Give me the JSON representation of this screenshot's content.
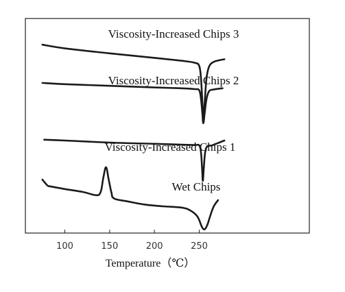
{
  "chart_data": {
    "type": "line",
    "xlabel": "Temperature（℃）",
    "ylabel": "",
    "xlim": [
      70,
      285
    ],
    "xticks": [
      100,
      150,
      200,
      250
    ],
    "grid": false,
    "legend": "none",
    "line_color": "#1a1a1a",
    "series": [
      {
        "name": "Viscosity-Increased Chips 3",
        "points": [
          [
            75,
            0.906
          ],
          [
            100,
            0.888
          ],
          [
            150,
            0.864
          ],
          [
            200,
            0.842
          ],
          [
            230,
            0.828
          ],
          [
            245,
            0.818
          ],
          [
            250,
            0.802
          ],
          [
            252,
            0.74
          ],
          [
            253.5,
            0.62
          ],
          [
            254.5,
            0.528
          ],
          [
            256,
            0.62
          ],
          [
            258,
            0.74
          ],
          [
            261,
            0.8
          ],
          [
            266,
            0.822
          ],
          [
            272,
            0.83
          ],
          [
            278,
            0.835
          ]
        ]
      },
      {
        "name": "Viscosity-Increased Chips 2",
        "points": [
          [
            75,
            0.72
          ],
          [
            100,
            0.714
          ],
          [
            150,
            0.706
          ],
          [
            200,
            0.698
          ],
          [
            230,
            0.694
          ],
          [
            245,
            0.69
          ],
          [
            250,
            0.684
          ],
          [
            252,
            0.64
          ],
          [
            253.5,
            0.57
          ],
          [
            254.5,
            0.524
          ],
          [
            256,
            0.57
          ],
          [
            258,
            0.64
          ],
          [
            261,
            0.68
          ],
          [
            266,
            0.688
          ],
          [
            272,
            0.692
          ],
          [
            276,
            0.694
          ]
        ]
      },
      {
        "name": "Viscosity-Increased Chips 1",
        "points": [
          [
            77,
            0.444
          ],
          [
            100,
            0.44
          ],
          [
            150,
            0.43
          ],
          [
            200,
            0.424
          ],
          [
            230,
            0.42
          ],
          [
            245,
            0.418
          ],
          [
            250,
            0.416
          ],
          [
            252,
            0.38
          ],
          [
            253.2,
            0.3
          ],
          [
            254,
            0.244
          ],
          [
            255,
            0.3
          ],
          [
            256.5,
            0.38
          ],
          [
            259,
            0.412
          ],
          [
            264,
            0.416
          ],
          [
            270,
            0.426
          ],
          [
            278,
            0.44
          ]
        ]
      },
      {
        "name": "Wet Chips",
        "points": [
          [
            75,
            0.25
          ],
          [
            78,
            0.234
          ],
          [
            81,
            0.22
          ],
          [
            85,
            0.216
          ],
          [
            100,
            0.204
          ],
          [
            120,
            0.19
          ],
          [
            135,
            0.174
          ],
          [
            140,
            0.19
          ],
          [
            143,
            0.26
          ],
          [
            146,
            0.31
          ],
          [
            149,
            0.25
          ],
          [
            152,
            0.188
          ],
          [
            155,
            0.158
          ],
          [
            170,
            0.144
          ],
          [
            190,
            0.128
          ],
          [
            210,
            0.12
          ],
          [
            230,
            0.114
          ],
          [
            240,
            0.1
          ],
          [
            248,
            0.07
          ],
          [
            253,
            0.02
          ],
          [
            256,
            0.008
          ],
          [
            259,
            0.03
          ],
          [
            262,
            0.07
          ],
          [
            266,
            0.118
          ],
          [
            271,
            0.15
          ]
        ]
      }
    ]
  }
}
